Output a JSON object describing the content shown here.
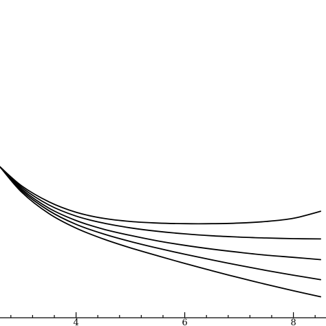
{
  "chart_data": {
    "type": "line",
    "title": "",
    "xlabel": "",
    "ylabel": "",
    "xlim": [
      2.6,
      8.6
    ],
    "ylim": [
      0,
      1
    ],
    "x_ticks": [
      {
        "value": 4,
        "label": "4"
      },
      {
        "value": 6,
        "label": "6"
      },
      {
        "value": 8,
        "label": "8"
      }
    ],
    "x_minor_ticks": [
      2.8,
      3.2,
      3.6,
      4.4,
      4.8,
      5.2,
      5.6,
      6.4,
      6.8,
      7.2,
      7.6,
      8.4
    ],
    "grid": false,
    "legend": "none",
    "line_color": "#000000",
    "series": [
      {
        "x": [
          2.6,
          3.0,
          3.5,
          4.0,
          4.5,
          5.0,
          5.5,
          6.0,
          6.5,
          7.0,
          7.5,
          8.0,
          8.5
        ],
        "values": [
          0.475,
          0.415,
          0.365,
          0.332,
          0.313,
          0.303,
          0.298,
          0.296,
          0.296,
          0.298,
          0.303,
          0.313,
          0.335
        ]
      },
      {
        "x": [
          2.6,
          3.0,
          3.5,
          4.0,
          4.5,
          5.0,
          5.5,
          6.0,
          6.5,
          7.0,
          7.5,
          8.0,
          8.5
        ],
        "values": [
          0.475,
          0.41,
          0.355,
          0.32,
          0.298,
          0.283,
          0.272,
          0.264,
          0.258,
          0.254,
          0.251,
          0.249,
          0.248
        ]
      },
      {
        "x": [
          2.6,
          3.0,
          3.5,
          4.0,
          4.5,
          5.0,
          5.5,
          6.0,
          6.5,
          7.0,
          7.5,
          8.0,
          8.5
        ],
        "values": [
          0.475,
          0.405,
          0.345,
          0.306,
          0.279,
          0.259,
          0.242,
          0.228,
          0.216,
          0.206,
          0.197,
          0.19,
          0.183
        ]
      },
      {
        "x": [
          2.6,
          3.0,
          3.5,
          4.0,
          4.5,
          5.0,
          5.5,
          6.0,
          6.5,
          7.0,
          7.5,
          8.0,
          8.5
        ],
        "values": [
          0.475,
          0.4,
          0.337,
          0.294,
          0.264,
          0.24,
          0.219,
          0.2,
          0.182,
          0.165,
          0.149,
          0.134,
          0.12
        ]
      },
      {
        "x": [
          2.6,
          3.0,
          3.5,
          4.0,
          4.5,
          5.0,
          5.5,
          6.0,
          6.5,
          7.0,
          7.5,
          8.0,
          8.5
        ],
        "values": [
          0.475,
          0.395,
          0.328,
          0.282,
          0.248,
          0.22,
          0.195,
          0.171,
          0.148,
          0.126,
          0.105,
          0.085,
          0.066
        ]
      }
    ]
  }
}
